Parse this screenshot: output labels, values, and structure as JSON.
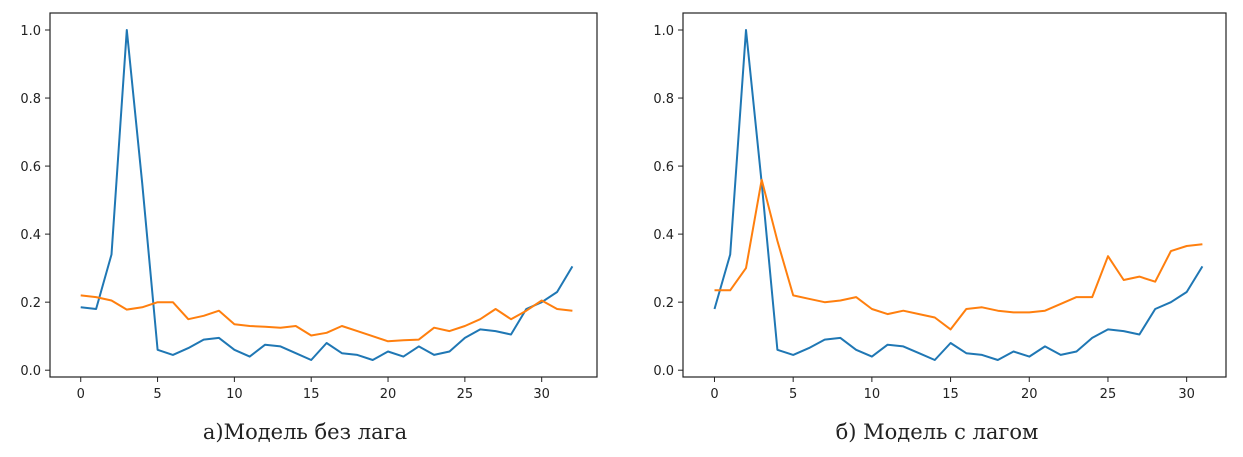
{
  "captions": [
    "a)Модель без лага",
    "б) Модель с лагом"
  ],
  "chart_data": [
    {
      "type": "line",
      "title": "",
      "xlabel": "",
      "ylabel": "",
      "xlim": [
        -2,
        33.6
      ],
      "ylim": [
        -0.02,
        1.05
      ],
      "xticks": [
        0,
        5,
        10,
        15,
        20,
        25,
        30
      ],
      "yticks": [
        0.0,
        0.2,
        0.4,
        0.6,
        0.8,
        1.0
      ],
      "ytick_labels": [
        "0.0",
        "0.2",
        "0.4",
        "0.6",
        "0.8",
        "1.0"
      ],
      "grid": false,
      "series": [
        {
          "color": "#1f77b4",
          "x": [
            0,
            1,
            2,
            3,
            4,
            5,
            6,
            7,
            8,
            9,
            10,
            11,
            12,
            13,
            14,
            15,
            16,
            17,
            18,
            19,
            20,
            21,
            22,
            23,
            24,
            25,
            26,
            27,
            28,
            29,
            30,
            31,
            32
          ],
          "y": [
            0.185,
            0.18,
            0.34,
            1.0,
            0.55,
            0.06,
            0.045,
            0.065,
            0.09,
            0.095,
            0.06,
            0.04,
            0.075,
            0.07,
            0.05,
            0.03,
            0.08,
            0.05,
            0.045,
            0.03,
            0.055,
            0.04,
            0.07,
            0.045,
            0.055,
            0.095,
            0.12,
            0.115,
            0.105,
            0.18,
            0.2,
            0.23,
            0.305
          ]
        },
        {
          "color": "#ff7f0e",
          "x": [
            0,
            1,
            2,
            3,
            4,
            5,
            6,
            7,
            8,
            9,
            10,
            11,
            12,
            13,
            14,
            15,
            16,
            17,
            18,
            19,
            20,
            21,
            22,
            23,
            24,
            25,
            26,
            27,
            28,
            29,
            30,
            31,
            32
          ],
          "y": [
            0.22,
            0.215,
            0.205,
            0.178,
            0.185,
            0.2,
            0.2,
            0.15,
            0.16,
            0.175,
            0.135,
            0.13,
            0.128,
            0.125,
            0.13,
            0.102,
            0.11,
            0.13,
            0.115,
            0.1,
            0.085,
            0.088,
            0.09,
            0.125,
            0.115,
            0.13,
            0.15,
            0.18,
            0.15,
            0.175,
            0.205,
            0.18,
            0.175
          ]
        }
      ]
    },
    {
      "type": "line",
      "title": "",
      "xlabel": "",
      "ylabel": "",
      "xlim": [
        -2,
        32.5
      ],
      "ylim": [
        -0.02,
        1.05
      ],
      "xticks": [
        0,
        5,
        10,
        15,
        20,
        25,
        30
      ],
      "yticks": [
        0.0,
        0.2,
        0.4,
        0.6,
        0.8,
        1.0
      ],
      "ytick_labels": [
        "0.0",
        "0.2",
        "0.4",
        "0.6",
        "0.8",
        "1.0"
      ],
      "grid": false,
      "series": [
        {
          "color": "#1f77b4",
          "x": [
            0,
            1,
            2,
            3,
            4,
            5,
            6,
            7,
            8,
            9,
            10,
            11,
            12,
            13,
            14,
            15,
            16,
            17,
            18,
            19,
            20,
            21,
            22,
            23,
            24,
            25,
            26,
            27,
            28,
            29,
            30,
            31
          ],
          "y": [
            0.18,
            0.34,
            1.0,
            0.55,
            0.06,
            0.045,
            0.065,
            0.09,
            0.095,
            0.06,
            0.04,
            0.075,
            0.07,
            0.05,
            0.03,
            0.08,
            0.05,
            0.045,
            0.03,
            0.055,
            0.04,
            0.07,
            0.045,
            0.055,
            0.095,
            0.12,
            0.115,
            0.105,
            0.18,
            0.2,
            0.23,
            0.305
          ]
        },
        {
          "color": "#ff7f0e",
          "x": [
            0,
            1,
            2,
            3,
            4,
            5,
            6,
            7,
            8,
            9,
            10,
            11,
            12,
            13,
            14,
            15,
            16,
            17,
            18,
            19,
            20,
            21,
            22,
            23,
            24,
            25,
            26,
            27,
            28,
            29,
            30,
            31
          ],
          "y": [
            0.235,
            0.235,
            0.3,
            0.56,
            0.38,
            0.22,
            0.21,
            0.2,
            0.205,
            0.215,
            0.18,
            0.165,
            0.175,
            0.165,
            0.155,
            0.12,
            0.18,
            0.185,
            0.175,
            0.17,
            0.17,
            0.175,
            0.195,
            0.215,
            0.215,
            0.335,
            0.265,
            0.275,
            0.26,
            0.35,
            0.365,
            0.37
          ]
        }
      ]
    }
  ]
}
